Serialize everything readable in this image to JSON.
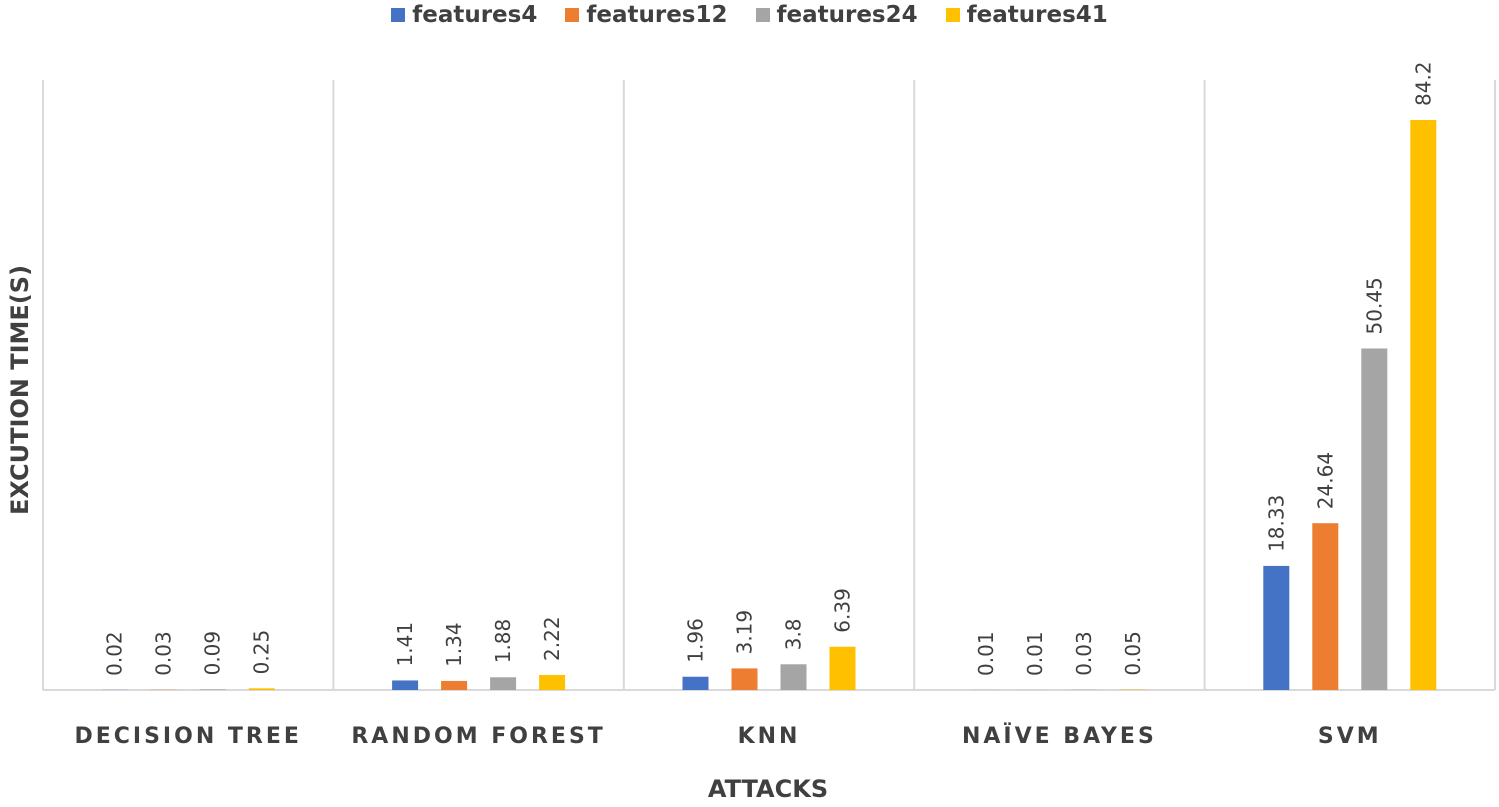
{
  "chart_data": {
    "type": "bar",
    "xlabel": "ATTACKS",
    "ylabel": "EXCUTION TIME(S)",
    "categories": [
      "DECISION TREE",
      "RANDOM FOREST",
      "KNN",
      "NAÏVE BAYES",
      "SVM"
    ],
    "series": [
      {
        "name": "features4",
        "color": "#4472C4",
        "values": [
          0.02,
          1.41,
          1.96,
          0.01,
          18.33
        ],
        "labels": [
          "0.02",
          "1.41",
          "1.96",
          "0.01",
          "18.33"
        ]
      },
      {
        "name": "features12",
        "color": "#ED7D31",
        "values": [
          0.03,
          1.34,
          3.19,
          0.01,
          24.64
        ],
        "labels": [
          "0.03",
          "1.34",
          "3.19",
          "0.01",
          "24.64"
        ]
      },
      {
        "name": "features24",
        "color": "#A5A5A5",
        "values": [
          0.09,
          1.88,
          3.8,
          0.03,
          50.45
        ],
        "labels": [
          "0.09",
          "1.88",
          "3.8",
          "0.03",
          "50.45"
        ]
      },
      {
        "name": "features41",
        "color": "#FFC000",
        "values": [
          0.25,
          2.22,
          6.39,
          0.05,
          84.2
        ],
        "labels": [
          "0.25",
          "2.22",
          "6.39",
          "0.05",
          "84.2"
        ]
      }
    ],
    "ylim": [
      0,
      84.2
    ],
    "grid": "vertical category separators",
    "legend": "top-center"
  }
}
